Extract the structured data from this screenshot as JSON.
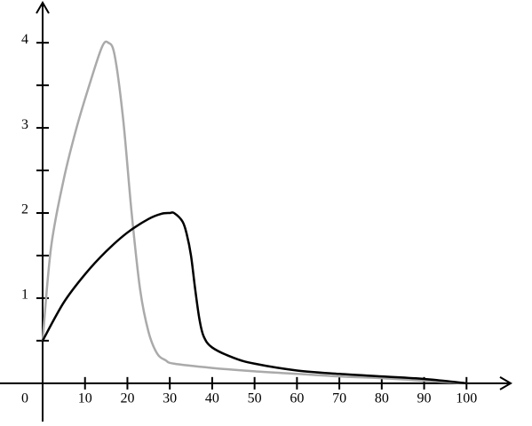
{
  "chart_data": {
    "type": "line",
    "xlim": [
      0,
      110
    ],
    "ylim": [
      -0.45,
      4.45
    ],
    "xticks": [
      0,
      10,
      20,
      30,
      40,
      50,
      60,
      70,
      80,
      90,
      100
    ],
    "yticks": [
      1,
      2,
      3,
      4
    ],
    "yminor": [
      0.5,
      1.5,
      2.5,
      3.5
    ],
    "series": [
      {
        "color": "#aaaaaa",
        "x": [
          0,
          2,
          5,
          8,
          11,
          14,
          15.5,
          17,
          19,
          21,
          23,
          25,
          27,
          29,
          31,
          40,
          50,
          60,
          70,
          80,
          90,
          100
        ],
        "values": [
          0.5,
          1.6,
          2.4,
          3.0,
          3.5,
          3.95,
          4.0,
          3.85,
          3.1,
          2.0,
          1.1,
          0.6,
          0.35,
          0.27,
          0.23,
          0.18,
          0.14,
          0.11,
          0.08,
          0.06,
          0.03,
          0
        ]
      },
      {
        "color": "#000000",
        "x": [
          0,
          5,
          10,
          15,
          20,
          25,
          28,
          30,
          31,
          33,
          34,
          35,
          36,
          37,
          38,
          40,
          45,
          50,
          60,
          70,
          80,
          90,
          100
        ],
        "values": [
          0.5,
          0.95,
          1.28,
          1.55,
          1.77,
          1.93,
          1.99,
          2.0,
          2.0,
          1.9,
          1.75,
          1.5,
          1.1,
          0.75,
          0.55,
          0.42,
          0.3,
          0.23,
          0.15,
          0.11,
          0.08,
          0.05,
          0
        ]
      }
    ]
  }
}
